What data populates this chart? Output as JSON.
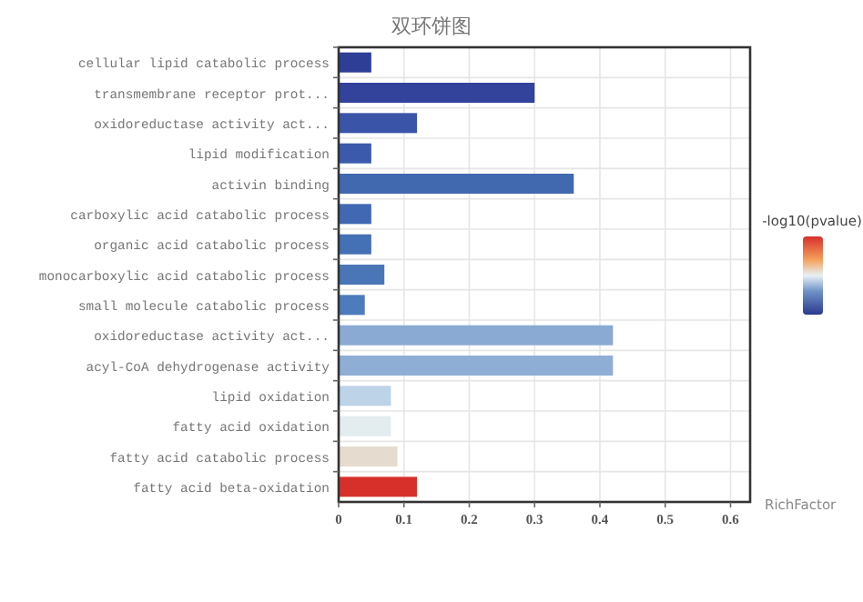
{
  "chart_data": {
    "type": "bar",
    "orientation": "horizontal",
    "title": "双环饼图",
    "xlabel": "RichFactor",
    "clabel": "-log10(pvalue)",
    "categories": [
      "cellular lipid catabolic process",
      "transmembrane receptor prot...",
      "oxidoreductase activity act...",
      "lipid modification",
      "activin binding",
      "carboxylic acid catabolic process",
      "organic acid catabolic process",
      "monocarboxylic acid catabolic process",
      "small molecule catabolic process",
      "oxidoreductase activity act...",
      "acyl-CoA dehydrogenase activity",
      "lipid oxidation",
      "fatty acid oxidation",
      "fatty acid catabolic process",
      "fatty acid beta-oxidation"
    ],
    "values": [
      0.05,
      0.3,
      0.12,
      0.05,
      0.36,
      0.05,
      0.05,
      0.07,
      0.04,
      0.42,
      0.42,
      0.08,
      0.08,
      0.09,
      0.12
    ],
    "colors": [
      "#2e3d96",
      "#33429b",
      "#3a55a8",
      "#3b5aab",
      "#4169b0",
      "#4169b3",
      "#4470b5",
      "#4a76b8",
      "#4d7bbb",
      "#8aaad3",
      "#8eaed5",
      "#bcd3e8",
      "#e3ecef",
      "#e5dccf",
      "#d7302b"
    ],
    "xlim": [
      0,
      0.63
    ],
    "xticks": [
      0,
      0.1,
      0.2,
      0.3,
      0.4,
      0.5,
      0.6
    ],
    "grid": true
  }
}
